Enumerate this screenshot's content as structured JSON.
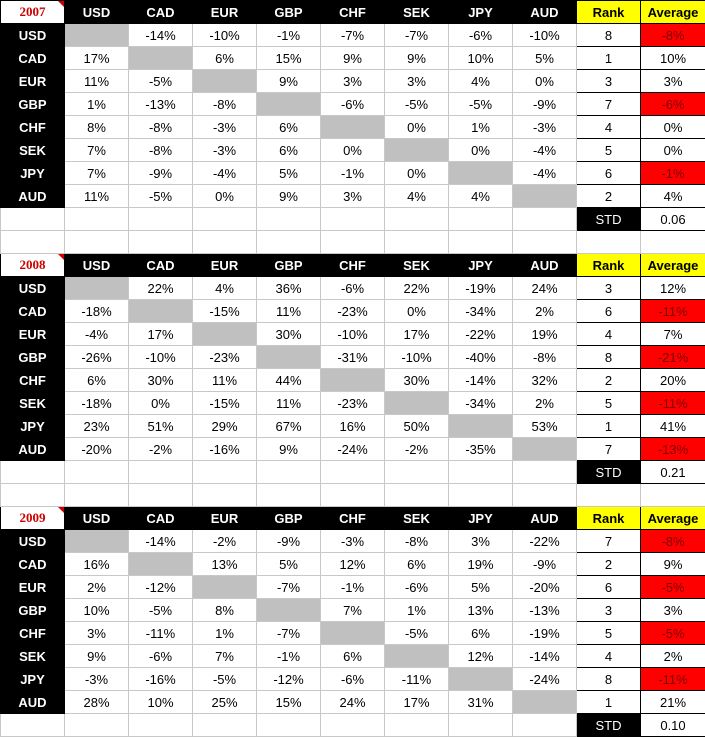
{
  "currencies": [
    "USD",
    "CAD",
    "EUR",
    "GBP",
    "CHF",
    "SEK",
    "JPY",
    "AUD"
  ],
  "rank_label": "Rank",
  "average_label": "Average",
  "std_label": "STD",
  "colors": {
    "negative_average": "#ff0000",
    "rank_header": "#ffff00",
    "diagonal": "#c0c0c0",
    "year_text": "#cc0000"
  },
  "sections": [
    {
      "year": "2007",
      "rows": [
        {
          "label": "USD",
          "cells": [
            "",
            "-14%",
            "-10%",
            "-1%",
            "-7%",
            "-7%",
            "-6%",
            "-10%"
          ],
          "rank": "8",
          "average": "-8%"
        },
        {
          "label": "CAD",
          "cells": [
            "17%",
            "",
            "6%",
            "15%",
            "9%",
            "9%",
            "10%",
            "5%"
          ],
          "rank": "1",
          "average": "10%"
        },
        {
          "label": "EUR",
          "cells": [
            "11%",
            "-5%",
            "",
            "9%",
            "3%",
            "3%",
            "4%",
            "0%"
          ],
          "rank": "3",
          "average": "3%"
        },
        {
          "label": "GBP",
          "cells": [
            "1%",
            "-13%",
            "-8%",
            "",
            "-6%",
            "-5%",
            "-5%",
            "-9%"
          ],
          "rank": "7",
          "average": "-6%"
        },
        {
          "label": "CHF",
          "cells": [
            "8%",
            "-8%",
            "-3%",
            "6%",
            "",
            "0%",
            "1%",
            "-3%"
          ],
          "rank": "4",
          "average": "0%"
        },
        {
          "label": "SEK",
          "cells": [
            "7%",
            "-8%",
            "-3%",
            "6%",
            "0%",
            "",
            "0%",
            "-4%"
          ],
          "rank": "5",
          "average": "0%"
        },
        {
          "label": "JPY",
          "cells": [
            "7%",
            "-9%",
            "-4%",
            "5%",
            "-1%",
            "0%",
            "",
            "-4%"
          ],
          "rank": "6",
          "average": "-1%"
        },
        {
          "label": "AUD",
          "cells": [
            "11%",
            "-5%",
            "0%",
            "9%",
            "3%",
            "4%",
            "4%",
            ""
          ],
          "rank": "2",
          "average": "4%"
        }
      ],
      "std": "0.06"
    },
    {
      "year": "2008",
      "rows": [
        {
          "label": "USD",
          "cells": [
            "",
            "22%",
            "4%",
            "36%",
            "-6%",
            "22%",
            "-19%",
            "24%"
          ],
          "rank": "3",
          "average": "12%"
        },
        {
          "label": "CAD",
          "cells": [
            "-18%",
            "",
            "-15%",
            "11%",
            "-23%",
            "0%",
            "-34%",
            "2%"
          ],
          "rank": "6",
          "average": "-11%"
        },
        {
          "label": "EUR",
          "cells": [
            "-4%",
            "17%",
            "",
            "30%",
            "-10%",
            "17%",
            "-22%",
            "19%"
          ],
          "rank": "4",
          "average": "7%"
        },
        {
          "label": "GBP",
          "cells": [
            "-26%",
            "-10%",
            "-23%",
            "",
            "-31%",
            "-10%",
            "-40%",
            "-8%"
          ],
          "rank": "8",
          "average": "-21%"
        },
        {
          "label": "CHF",
          "cells": [
            "6%",
            "30%",
            "11%",
            "44%",
            "",
            "30%",
            "-14%",
            "32%"
          ],
          "rank": "2",
          "average": "20%"
        },
        {
          "label": "SEK",
          "cells": [
            "-18%",
            "0%",
            "-15%",
            "11%",
            "-23%",
            "",
            "-34%",
            "2%"
          ],
          "rank": "5",
          "average": "-11%"
        },
        {
          "label": "JPY",
          "cells": [
            "23%",
            "51%",
            "29%",
            "67%",
            "16%",
            "50%",
            "",
            "53%"
          ],
          "rank": "1",
          "average": "41%"
        },
        {
          "label": "AUD",
          "cells": [
            "-20%",
            "-2%",
            "-16%",
            "9%",
            "-24%",
            "-2%",
            "-35%",
            ""
          ],
          "rank": "7",
          "average": "-13%"
        }
      ],
      "std": "0.21"
    },
    {
      "year": "2009",
      "rows": [
        {
          "label": "USD",
          "cells": [
            "",
            "-14%",
            "-2%",
            "-9%",
            "-3%",
            "-8%",
            "3%",
            "-22%"
          ],
          "rank": "7",
          "average": "-8%"
        },
        {
          "label": "CAD",
          "cells": [
            "16%",
            "",
            "13%",
            "5%",
            "12%",
            "6%",
            "19%",
            "-9%"
          ],
          "rank": "2",
          "average": "9%"
        },
        {
          "label": "EUR",
          "cells": [
            "2%",
            "-12%",
            "",
            "-7%",
            "-1%",
            "-6%",
            "5%",
            "-20%"
          ],
          "rank": "6",
          "average": "-5%"
        },
        {
          "label": "GBP",
          "cells": [
            "10%",
            "-5%",
            "8%",
            "",
            "7%",
            "1%",
            "13%",
            "-13%"
          ],
          "rank": "3",
          "average": "3%"
        },
        {
          "label": "CHF",
          "cells": [
            "3%",
            "-11%",
            "1%",
            "-7%",
            "",
            "-5%",
            "6%",
            "-19%"
          ],
          "rank": "5",
          "average": "-5%"
        },
        {
          "label": "SEK",
          "cells": [
            "9%",
            "-6%",
            "7%",
            "-1%",
            "6%",
            "",
            "12%",
            "-14%"
          ],
          "rank": "4",
          "average": "2%"
        },
        {
          "label": "JPY",
          "cells": [
            "-3%",
            "-16%",
            "-5%",
            "-12%",
            "-6%",
            "-11%",
            "",
            "-24%"
          ],
          "rank": "8",
          "average": "-11%"
        },
        {
          "label": "AUD",
          "cells": [
            "28%",
            "10%",
            "25%",
            "15%",
            "24%",
            "17%",
            "31%",
            ""
          ],
          "rank": "1",
          "average": "21%"
        }
      ],
      "std": "0.10"
    }
  ]
}
